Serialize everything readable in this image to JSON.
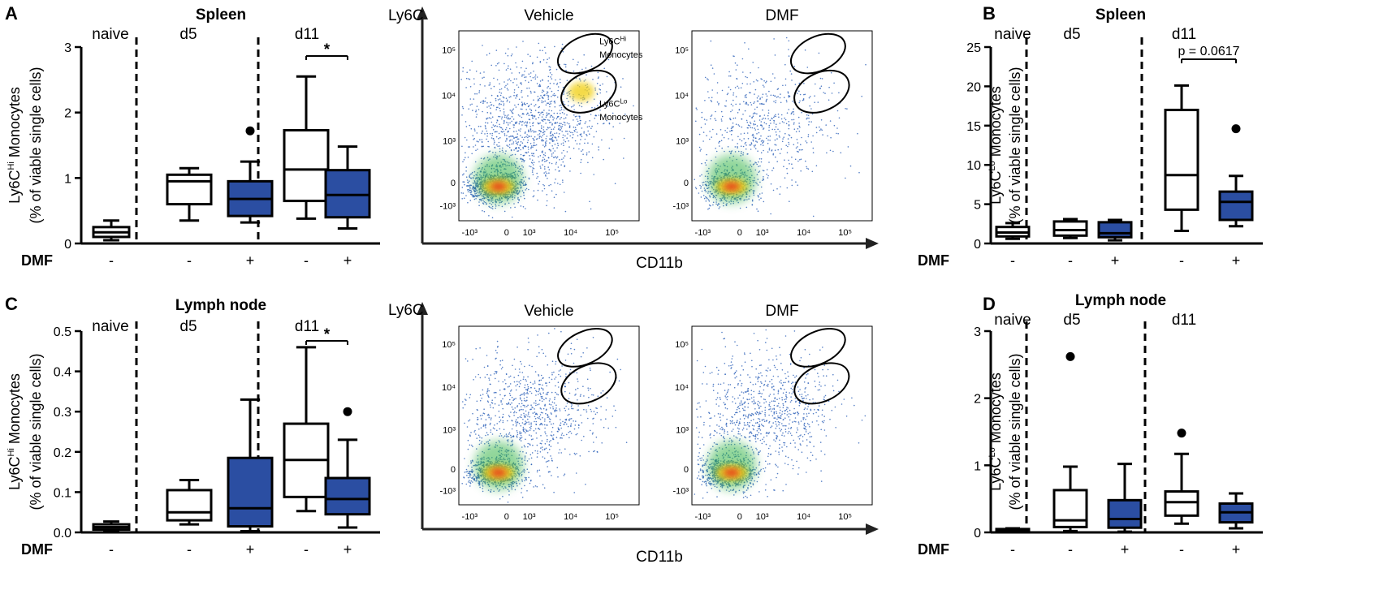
{
  "panel_letters": [
    "A",
    "B",
    "C",
    "D"
  ],
  "dmf_label": "DMF",
  "chart_data": [
    {
      "id": "A",
      "type": "box",
      "title": "Spleen",
      "ylabel_line1": "Ly6C",
      "ylabel_sup": "Hi",
      "ylabel_line1b": " Monocytes",
      "ylabel_line2": "(% of viable single cells)",
      "ylim": [
        0,
        3
      ],
      "yticks": [
        "0",
        "1",
        "2",
        "3"
      ],
      "groups": [
        "naive",
        "d5",
        "d11"
      ],
      "signs": [
        "-",
        "-",
        "+",
        "-",
        "+"
      ],
      "annotation": "*",
      "boxes": [
        {
          "group": "naive",
          "dmf": "-",
          "min": 0.05,
          "q1": 0.1,
          "median": 0.17,
          "q3": 0.25,
          "max": 0.35,
          "outliers": []
        },
        {
          "group": "d5",
          "dmf": "-",
          "min": 0.35,
          "q1": 0.6,
          "median": 0.95,
          "q3": 1.05,
          "max": 1.15,
          "outliers": []
        },
        {
          "group": "d5",
          "dmf": "+",
          "min": 0.32,
          "q1": 0.42,
          "median": 0.68,
          "q3": 0.95,
          "max": 1.25,
          "outliers": [
            1.72
          ]
        },
        {
          "group": "d11",
          "dmf": "-",
          "min": 0.38,
          "q1": 0.65,
          "median": 1.13,
          "q3": 1.73,
          "max": 2.55,
          "outliers": []
        },
        {
          "group": "d11",
          "dmf": "+",
          "min": 0.23,
          "q1": 0.4,
          "median": 0.74,
          "q3": 1.12,
          "max": 1.48,
          "outliers": []
        }
      ]
    },
    {
      "id": "B",
      "type": "box",
      "title": "Spleen",
      "ylabel_line1": "Ly6C",
      "ylabel_sup": "Lo",
      "ylabel_line1b": " Monocytes",
      "ylabel_line2": "(% of viable single cells)",
      "ylim": [
        0,
        25
      ],
      "yticks": [
        "0",
        "5",
        "10",
        "15",
        "20",
        "25"
      ],
      "groups": [
        "naive",
        "d5",
        "d11"
      ],
      "signs": [
        "-",
        "-",
        "+",
        "-",
        "+"
      ],
      "annotation": "p = 0.0617",
      "boxes": [
        {
          "group": "naive",
          "dmf": "-",
          "min": 0.6,
          "q1": 0.9,
          "median": 1.4,
          "q3": 2.1,
          "max": 2.6,
          "outliers": []
        },
        {
          "group": "d5",
          "dmf": "-",
          "min": 0.7,
          "q1": 1.0,
          "median": 1.7,
          "q3": 2.8,
          "max": 3.1,
          "outliers": []
        },
        {
          "group": "d5",
          "dmf": "+",
          "min": 0.4,
          "q1": 0.8,
          "median": 1.3,
          "q3": 2.7,
          "max": 3.0,
          "outliers": []
        },
        {
          "group": "d11",
          "dmf": "-",
          "min": 1.6,
          "q1": 4.3,
          "median": 8.7,
          "q3": 17.0,
          "max": 20.1,
          "outliers": []
        },
        {
          "group": "d11",
          "dmf": "+",
          "min": 2.2,
          "q1": 3.0,
          "median": 5.3,
          "q3": 6.6,
          "max": 8.6,
          "outliers": [
            14.6
          ]
        }
      ]
    },
    {
      "id": "C",
      "type": "box",
      "title": "Lymph node",
      "ylabel_line1": "Ly6C",
      "ylabel_sup": "Hi",
      "ylabel_line1b": " Monocytes",
      "ylabel_line2": "(% of viable single cells)",
      "ylim": [
        0,
        0.5
      ],
      "yticks": [
        "0.0",
        "0.1",
        "0.2",
        "0.3",
        "0.4",
        "0.5"
      ],
      "groups": [
        "naive",
        "d5",
        "d11"
      ],
      "signs": [
        "-",
        "-",
        "+",
        "-",
        "+"
      ],
      "annotation": "*",
      "boxes": [
        {
          "group": "naive",
          "dmf": "-",
          "min": 0.003,
          "q1": 0.007,
          "median": 0.013,
          "q3": 0.02,
          "max": 0.027,
          "outliers": []
        },
        {
          "group": "d5",
          "dmf": "-",
          "min": 0.02,
          "q1": 0.03,
          "median": 0.05,
          "q3": 0.105,
          "max": 0.13,
          "outliers": []
        },
        {
          "group": "d5",
          "dmf": "+",
          "min": 0.003,
          "q1": 0.015,
          "median": 0.06,
          "q3": 0.185,
          "max": 0.33,
          "outliers": []
        },
        {
          "group": "d11",
          "dmf": "-",
          "min": 0.053,
          "q1": 0.088,
          "median": 0.18,
          "q3": 0.27,
          "max": 0.46,
          "outliers": []
        },
        {
          "group": "d11",
          "dmf": "+",
          "min": 0.012,
          "q1": 0.045,
          "median": 0.083,
          "q3": 0.135,
          "max": 0.23,
          "outliers": [
            0.3
          ]
        }
      ]
    },
    {
      "id": "D",
      "type": "box",
      "title": "Lymph node",
      "ylabel_line1": "Ly6C",
      "ylabel_sup": "Lo",
      "ylabel_line1b": " Monocytes",
      "ylabel_line2": "(% of viable single cells)",
      "ylim": [
        0,
        3
      ],
      "yticks": [
        "0",
        "1",
        "2",
        "3"
      ],
      "groups": [
        "naive",
        "d5",
        "d11"
      ],
      "signs": [
        "-",
        "-",
        "+",
        "-",
        "+"
      ],
      "annotation": "",
      "boxes": [
        {
          "group": "naive",
          "dmf": "-",
          "min": 0.01,
          "q1": 0.02,
          "median": 0.03,
          "q3": 0.05,
          "max": 0.06,
          "outliers": []
        },
        {
          "group": "d5",
          "dmf": "-",
          "min": 0.02,
          "q1": 0.08,
          "median": 0.18,
          "q3": 0.63,
          "max": 0.98,
          "outliers": [
            2.62
          ]
        },
        {
          "group": "d5",
          "dmf": "+",
          "min": 0.01,
          "q1": 0.07,
          "median": 0.2,
          "q3": 0.48,
          "max": 1.02,
          "outliers": []
        },
        {
          "group": "d11",
          "dmf": "-",
          "min": 0.13,
          "q1": 0.25,
          "median": 0.45,
          "q3": 0.61,
          "max": 1.17,
          "outliers": [
            1.48
          ]
        },
        {
          "group": "d11",
          "dmf": "+",
          "min": 0.06,
          "q1": 0.15,
          "median": 0.3,
          "q3": 0.43,
          "max": 0.58,
          "outliers": []
        }
      ]
    }
  ],
  "flow_panels": [
    {
      "row": "spleen",
      "yaxis_label": "Ly6C",
      "xaxis_label": "CD11b",
      "x_ticks": [
        "-10³",
        "0",
        "10³",
        "10⁴",
        "10⁵"
      ],
      "y_ticks": [
        "10⁵",
        "10⁴",
        "10³",
        "0",
        "-10³"
      ],
      "plots": [
        {
          "title": "Vehicle",
          "gate_hi": "Ly6C",
          "gate_hi_sup": "Hi",
          "gate_hi_2": "Monocytes",
          "gate_lo": "Ly6C",
          "gate_lo_sup": "Lo",
          "gate_lo_2": "Monocytes",
          "density": "high"
        },
        {
          "title": "DMF",
          "density": "low"
        }
      ]
    },
    {
      "row": "lymph",
      "yaxis_label": "Ly6C",
      "xaxis_label": "CD11b",
      "x_ticks": [
        "-10³",
        "0",
        "10³",
        "10⁴",
        "10⁵"
      ],
      "y_ticks": [
        "10⁵",
        "10⁴",
        "10³",
        "0",
        "-10³"
      ],
      "plots": [
        {
          "title": "Vehicle",
          "density": "medium"
        },
        {
          "title": "DMF",
          "density": "medium"
        }
      ]
    }
  ]
}
